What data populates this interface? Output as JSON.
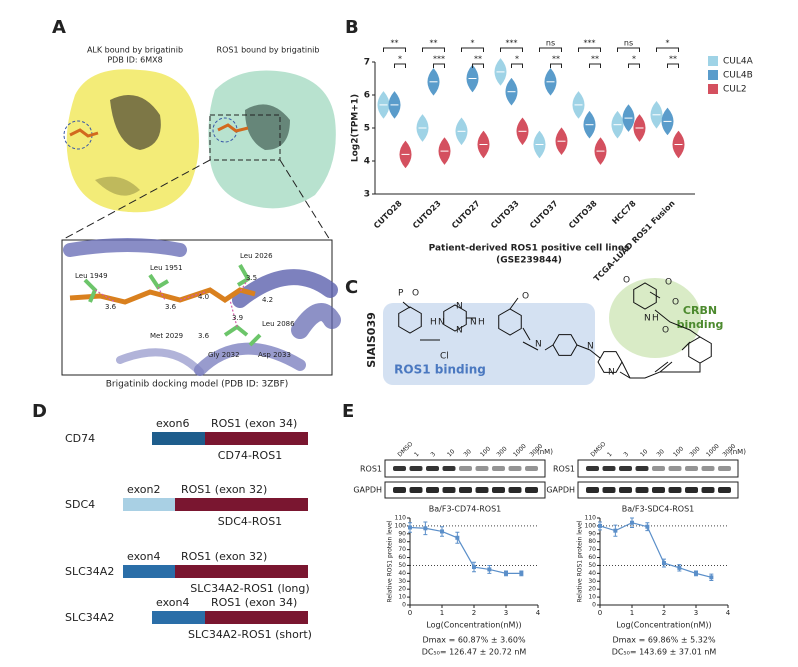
{
  "panels": {
    "A": {
      "label": "A",
      "alk_title": "ALK bound by brigatinib",
      "alk_pdb": "PDB ID: 6MX8",
      "ros1_title": "ROS1 bound by brigatinib",
      "residues": [
        "Leu 1949",
        "Leu 1951",
        "Leu 2026",
        "Met 2029",
        "Leu 2086",
        "Gly 2032",
        "Asp 2033"
      ],
      "distances": [
        "3.6",
        "3.6",
        "4.0",
        "3.5",
        "4.2",
        "3.9",
        "3.6"
      ],
      "caption": "Brigatinib docking model (PDB ID: 3ZBF)"
    },
    "B": {
      "label": "B"
    },
    "C": {
      "label": "C",
      "compound": "SIAIS039",
      "ros1_region": "ROS1 binding",
      "crbn_region": [
        "CRBN",
        "binding"
      ],
      "atoms": [
        "P",
        "O",
        "H",
        "N",
        "N",
        "N",
        "H",
        "N",
        "Cl",
        "O",
        "N",
        "N",
        "O",
        "O",
        "N",
        "H",
        "O",
        "N",
        "O"
      ]
    },
    "D": {
      "label": "D",
      "constructs": [
        {
          "gene": "CD74",
          "exon": "exon6",
          "ros1": "ROS1 (exon 34)",
          "fusion": "CD74-ROS1"
        },
        {
          "gene": "SDC4",
          "exon": "exon2",
          "ros1": "ROS1 (exon 32)",
          "fusion": "SDC4-ROS1"
        },
        {
          "gene": "SLC34A2",
          "exon": "exon4",
          "ros1": "ROS1 (exon 32)",
          "fusion": "SLC34A2-ROS1 (long)"
        },
        {
          "gene": "SLC34A2",
          "exon": "exon4",
          "ros1": "ROS1 (exon 34)",
          "fusion": "SLC34A2-ROS1 (short)"
        }
      ]
    },
    "E": {
      "label": "E",
      "lanes": [
        "DMSO",
        "1",
        "3",
        "10",
        "30",
        "100",
        "300",
        "1000",
        "3000"
      ],
      "unit": "(nM)",
      "rows": [
        "ROS1",
        "GAPDH"
      ]
    }
  },
  "chart_data": [
    {
      "type": "violin",
      "ylabel": "Log2(TPM+1)",
      "xlabel": [
        "Patient-derived ROS1 positive cell lines",
        "(GSE239844)"
      ],
      "categories": [
        "CUTO28",
        "CUTO23",
        "CUTO27",
        "CUTO33",
        "CUTO37",
        "CUTO38",
        "HCC78",
        "TCGA-LUAD ROS1 Fusion"
      ],
      "series": [
        {
          "name": "CUL4A",
          "color": "#9fd3e6",
          "values": [
            5.7,
            5.0,
            4.9,
            6.7,
            4.5,
            5.7,
            5.1,
            5.4
          ]
        },
        {
          "name": "CUL4B",
          "color": "#5a9ccb",
          "values": [
            5.7,
            6.4,
            6.5,
            6.1,
            6.4,
            5.1,
            5.3,
            5.2
          ]
        },
        {
          "name": "CUL2",
          "color": "#d4505f",
          "values": [
            4.2,
            4.3,
            4.5,
            4.9,
            4.6,
            4.3,
            5.0,
            4.5
          ]
        }
      ],
      "significance_outer": [
        "**",
        "**",
        "*",
        "***",
        "ns",
        "***",
        "ns",
        "*"
      ],
      "significance_inner": [
        "*",
        "***",
        "**",
        "*",
        "**",
        "**",
        "*",
        "**"
      ],
      "ylim": [
        3,
        7
      ],
      "yticks": [
        3,
        4,
        5,
        6,
        7
      ],
      "legend": "right"
    },
    {
      "type": "scatter",
      "title": "Ba/F3-CD74-ROS1",
      "xlabel": "Log(Concentration(nM))",
      "ylabel": "Relative ROS1 protein level",
      "x": [
        0,
        0.48,
        1,
        1.48,
        2,
        2.48,
        3,
        3.48
      ],
      "values": [
        98,
        97,
        93,
        85,
        48,
        45,
        40,
        40
      ],
      "errors": [
        6,
        8,
        6,
        7,
        6,
        5,
        3,
        3
      ],
      "color": "#5b8fc9",
      "hlines": [
        100,
        50
      ],
      "xlim": [
        0,
        4
      ],
      "xticks": [
        0,
        1,
        2,
        3,
        4
      ],
      "ylim": [
        0,
        110
      ],
      "yticks": [
        0,
        10,
        20,
        30,
        40,
        50,
        60,
        70,
        80,
        90,
        100,
        110
      ],
      "annotations": [
        "Dmax = 60.87% ± 3.60%",
        "DC₅₀= 126.47 ± 20.72 nM"
      ]
    },
    {
      "type": "scatter",
      "title": "Ba/F3-SDC4-ROS1",
      "xlabel": "Log(Concentration(nM))",
      "ylabel": "Relative ROS1 protein level",
      "x": [
        0,
        0.48,
        1,
        1.48,
        2,
        2.48,
        3,
        3.48
      ],
      "values": [
        100,
        94,
        104,
        99,
        53,
        47,
        40,
        35
      ],
      "errors": [
        5,
        7,
        6,
        5,
        5,
        4,
        3,
        4
      ],
      "color": "#5b8fc9",
      "hlines": [
        100,
        50
      ],
      "xlim": [
        0,
        4
      ],
      "xticks": [
        0,
        1,
        2,
        3,
        4
      ],
      "ylim": [
        0,
        110
      ],
      "yticks": [
        0,
        10,
        20,
        30,
        40,
        50,
        60,
        70,
        80,
        90,
        100,
        110
      ],
      "annotations": [
        "Dmax = 69.86% ± 5.32%",
        "DC₅₀= 143.69 ± 37.01 nM"
      ]
    }
  ]
}
